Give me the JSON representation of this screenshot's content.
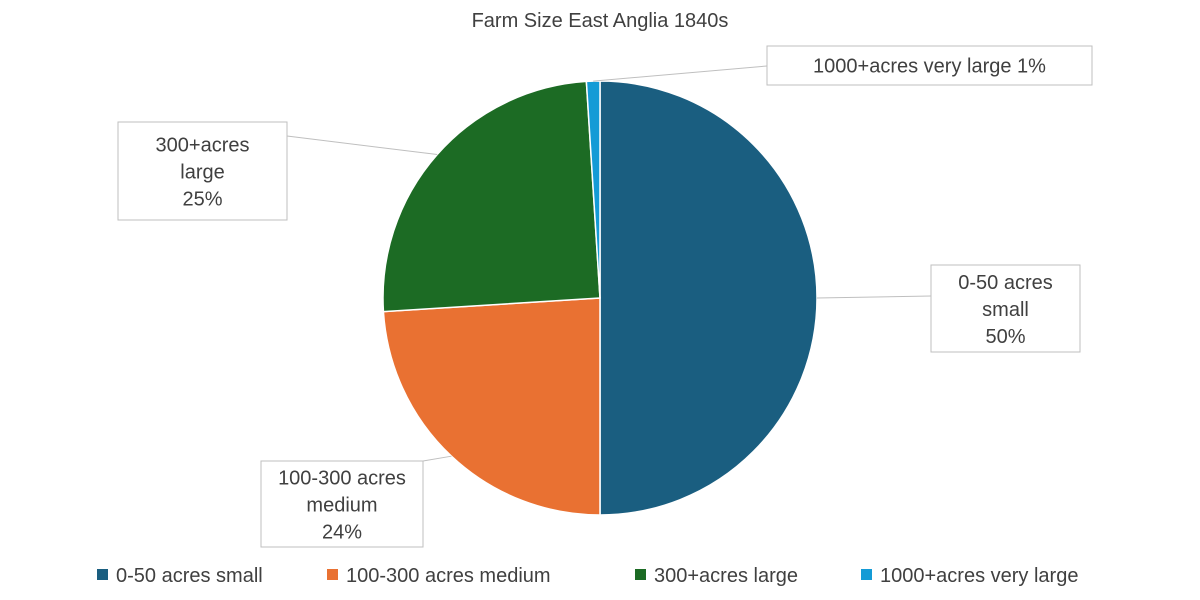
{
  "chart_data": {
    "type": "pie",
    "title": "Farm Size East Anglia 1840s",
    "slices": [
      {
        "name": "0-50 acres small",
        "label_lines": [
          "0-50 acres",
          "small"
        ],
        "value": 50,
        "percent_label": "50%",
        "color": "#1a5e80"
      },
      {
        "name": "100-300 acres medium",
        "label_lines": [
          "100-300 acres",
          "medium"
        ],
        "value": 24,
        "percent_label": "24%",
        "color": "#e97132"
      },
      {
        "name": "300+acres large",
        "label_lines": [
          "300+acres",
          "large"
        ],
        "value": 25,
        "percent_label": "25%",
        "color": "#1c6b24"
      },
      {
        "name": "1000+acres very large",
        "label_lines": [
          "1000+acres very large"
        ],
        "value": 1,
        "percent_label": "1%",
        "color": "#149bd6"
      }
    ],
    "legend_position": "bottom"
  }
}
